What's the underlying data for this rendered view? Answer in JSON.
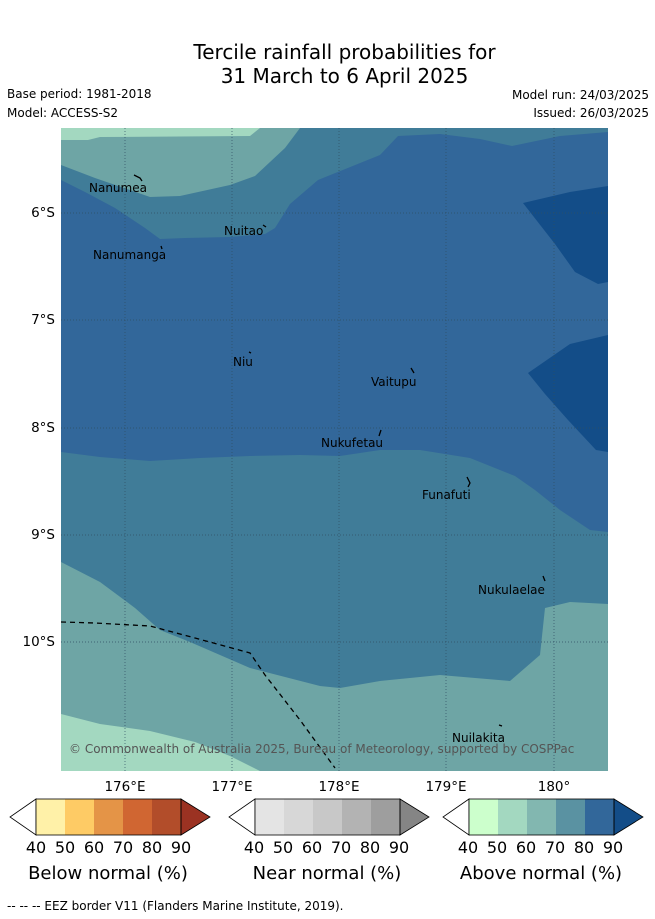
{
  "title": {
    "line1": "Tercile rainfall probabilities for",
    "line2": "31 March to 6 April 2025"
  },
  "meta": {
    "base_period": "Base period: 1981-2018",
    "model": "Model: ACCESS-S2",
    "model_run": "Model run: 24/03/2025",
    "issued": "Issued: 26/03/2025"
  },
  "map": {
    "lat_labels": [
      "6°S",
      "7°S",
      "8°S",
      "9°S",
      "10°S"
    ],
    "lon_labels": [
      "176°E",
      "177°E",
      "178°E",
      "179°E",
      "180°"
    ],
    "places": [
      "Nanumea",
      "Nuitao",
      "Nanumanga",
      "Niu",
      "Vaitupu",
      "Nukufetau",
      "Funafuti",
      "Nukulaelae",
      "Nuilakita"
    ],
    "copyright": "© Commonwealth of Australia 2025, Bureau of Meteorology, supported by COSPPac",
    "colors": {
      "above_50": "#a3d8c0",
      "above_60": "#6ea5a5",
      "above_70": "#407c98",
      "above_80": "#32679a",
      "above_90": "#134d88",
      "eez_line": "#000000"
    }
  },
  "colorbars": {
    "ticks": [
      "40",
      "50",
      "60",
      "70",
      "80",
      "90"
    ],
    "below": {
      "title": "Below normal (%)",
      "colors": [
        "#ffffff",
        "#fff1a8",
        "#fecb65",
        "#e49447",
        "#d06632",
        "#b24d2a",
        "#9b3222"
      ]
    },
    "near": {
      "title": "Near normal (%)",
      "colors": [
        "#ffffff",
        "#e4e4e4",
        "#d7d7d7",
        "#c8c8c8",
        "#b3b3b3",
        "#9e9e9e",
        "#858585"
      ]
    },
    "above": {
      "title": "Above normal (%)",
      "colors": [
        "#ffffff",
        "#ccffcc",
        "#a3d8c0",
        "#82b7b0",
        "#5a92a2",
        "#32679a",
        "#134d88"
      ]
    }
  },
  "footnote": "-- -- -- EEZ border V11 (Flanders Marine Institute, 2019)."
}
